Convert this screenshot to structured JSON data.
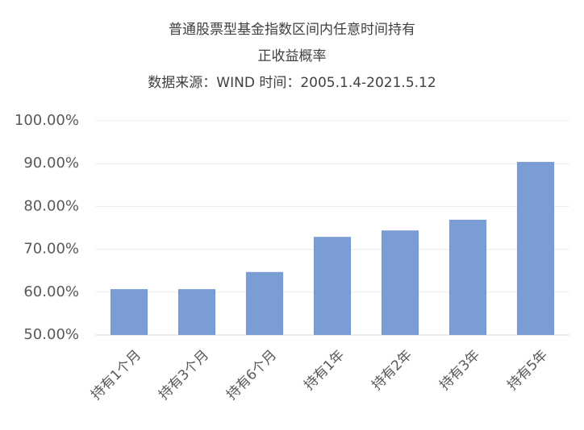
{
  "chart_data": {
    "type": "bar",
    "title": [
      "普通股票型基金指数区间内任意时间持有",
      "正收益概率"
    ],
    "subtitle": "数据来源：WIND 时间：2005.1.4-2021.5.12",
    "categories": [
      "持有1个月",
      "持有3个月",
      "持有6个月",
      "持有1年",
      "持有2年",
      "持有3年",
      "持有5年"
    ],
    "values": [
      60.7,
      60.7,
      64.7,
      72.9,
      74.4,
      76.9,
      90.4
    ],
    "color": "#7b9dd6",
    "ylim": [
      50,
      100
    ],
    "yticks": [
      {
        "value": 50,
        "label": "50.00%"
      },
      {
        "value": 60,
        "label": "60.00%"
      },
      {
        "value": 70,
        "label": "70.00%"
      },
      {
        "value": 80,
        "label": "80.00%"
      },
      {
        "value": 90,
        "label": "90.00%"
      },
      {
        "value": 100,
        "label": "100.00%"
      }
    ],
    "grid": true
  }
}
